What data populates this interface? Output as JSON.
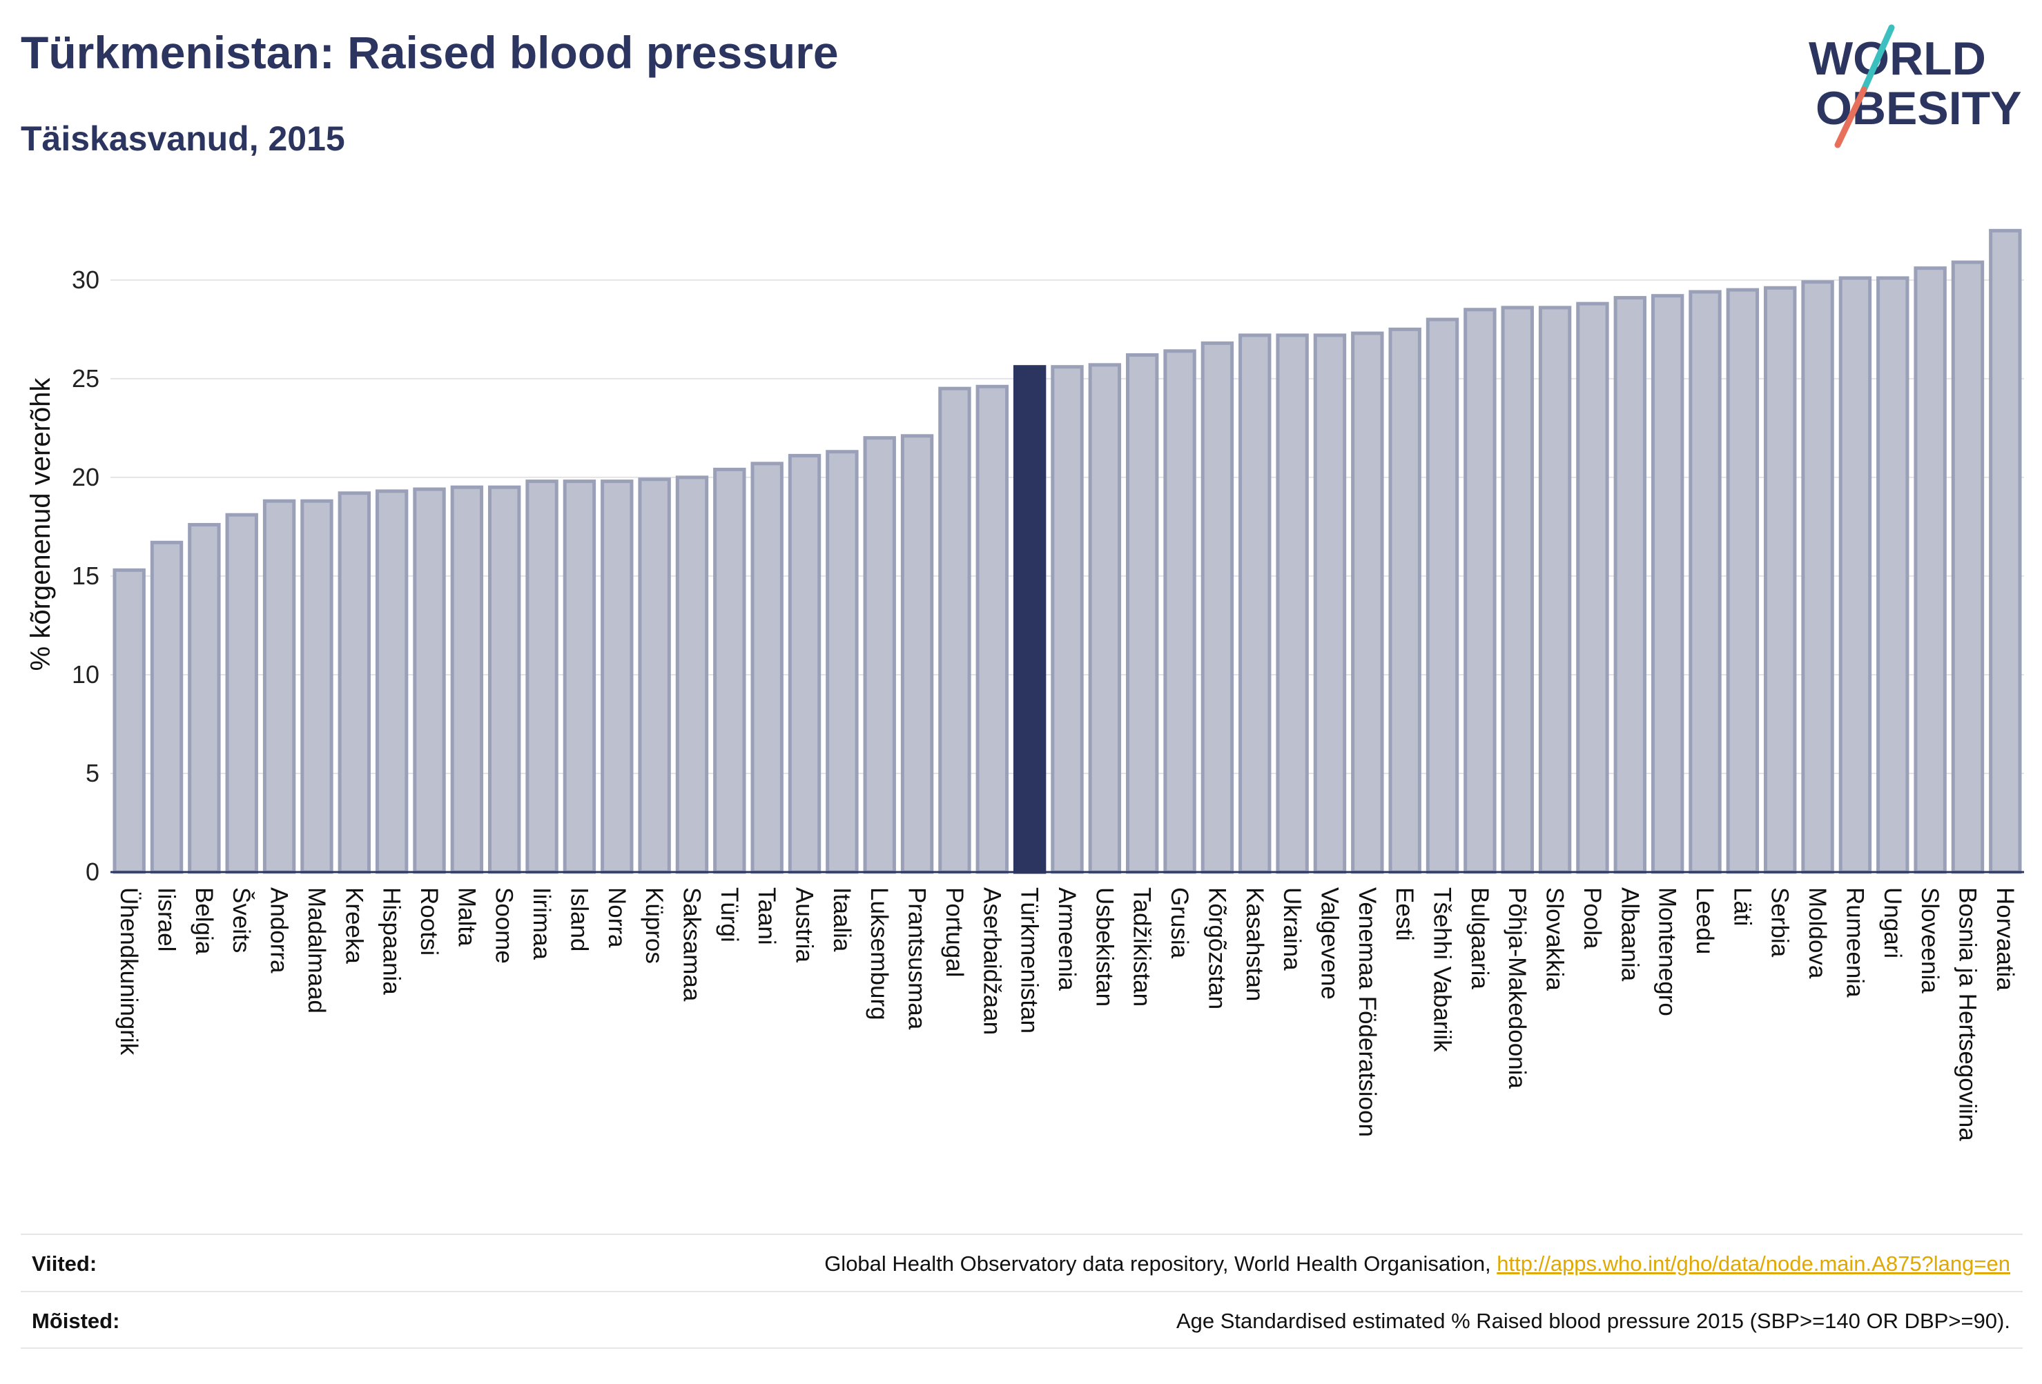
{
  "header": {
    "title": "Türkmenistan: Raised blood pressure",
    "subtitle": "Täiskasvanud, 2015"
  },
  "logo": {
    "line1": "WORLD",
    "line2": "OBESITY",
    "icon": "world-obesity-logo-slash",
    "colors": {
      "text": "#2b3560",
      "slash_top": "#3bbfbf",
      "slash_bottom": "#e8705a"
    }
  },
  "colors": {
    "bar": "#bdc0cf",
    "bar_edge": "#9aa0b8",
    "highlight": "#2b3560"
  },
  "chart_data": {
    "type": "bar",
    "ylabel": "% kõrgenenud vererõhk",
    "ylim": [
      0,
      33
    ],
    "yticks": [
      0,
      5,
      10,
      15,
      20,
      25,
      30
    ],
    "grid": true,
    "highlight": "Türkmenistan",
    "categories": [
      "Ühendkuningrik",
      "Iisrael",
      "Belgia",
      "Šveits",
      "Andorra",
      "Madalmaad",
      "Kreeka",
      "Hispaania",
      "Rootsi",
      "Malta",
      "Soome",
      "Iirimaa",
      "Island",
      "Norra",
      "Küpros",
      "Saksamaa",
      "Türgi",
      "Taani",
      "Austria",
      "Itaalia",
      "Luksemburg",
      "Prantsusmaa",
      "Portugal",
      "Aserbaidžaan",
      "Türkmenistan",
      "Armeenia",
      "Usbekistan",
      "Tadžikistan",
      "Grusia",
      "Kõrgõzstan",
      "Kasahstan",
      "Ukraina",
      "Valgevene",
      "Venemaa Föderatsioon",
      "Eesti",
      "Tšehhi Vabariik",
      "Bulgaaria",
      "Põhja-Makedoonia",
      "Slovakkia",
      "Poola",
      "Albaania",
      "Montenegro",
      "Leedu",
      "Läti",
      "Serbia",
      "Moldova",
      "Rumeenia",
      "Ungari",
      "Sloveenia",
      "Bosnia ja Hertsegoviina",
      "Horvaatia"
    ],
    "values": [
      15.3,
      16.7,
      17.6,
      18.1,
      18.8,
      18.8,
      19.2,
      19.3,
      19.4,
      19.5,
      19.5,
      19.8,
      19.8,
      19.8,
      19.9,
      20.0,
      20.4,
      20.7,
      21.1,
      21.3,
      22.0,
      22.1,
      24.5,
      24.6,
      25.6,
      25.6,
      25.7,
      26.2,
      26.4,
      26.8,
      27.2,
      27.2,
      27.2,
      27.3,
      27.5,
      28.0,
      28.5,
      28.6,
      28.6,
      28.8,
      29.1,
      29.2,
      29.4,
      29.5,
      29.6,
      29.9,
      30.1,
      30.1,
      30.6,
      30.9,
      32.5
    ]
  },
  "footer": {
    "sources_label": "Viited:",
    "sources_text": "Global Health Observatory data repository, World Health Organisation, ",
    "sources_link": "http://apps.who.int/gho/data/node.main.A875?lang=en",
    "definitions_label": "Mõisted:",
    "definitions_text": "Age Standardised estimated % Raised blood pressure 2015 (SBP>=140 OR DBP>=90)."
  }
}
